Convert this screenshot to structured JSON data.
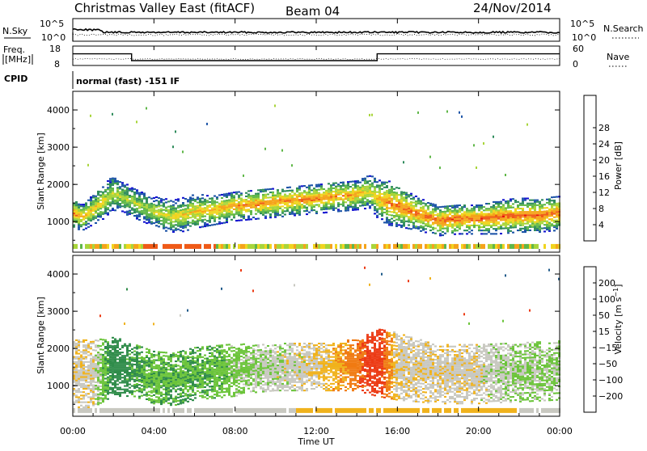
{
  "header": {
    "title": "Christmas Valley East (fitACF)",
    "beam": "Beam 04",
    "date": "24/Nov/2014"
  },
  "top_panels": {
    "sky_label": "N.Sky",
    "search_label": "N.Search",
    "noise_axis_ticks": [
      "10^5",
      "10^0"
    ],
    "freq_label_line1": "Freq.",
    "freq_label_line2": "[MHz]",
    "freq_ticks": [
      18,
      8
    ],
    "nave_label": "Nave",
    "nave_ticks": [
      60,
      0
    ],
    "cpid_label": "CPID",
    "cpid_text": "normal (fast) -151 IF"
  },
  "power_colorbar": {
    "label": "Power [dB]",
    "ticks": [
      4,
      8,
      12,
      16,
      20,
      24,
      28
    ],
    "colors": [
      "#1414d0",
      "#1e55a8",
      "#2f8c5c",
      "#5fb748",
      "#a8d53a",
      "#f0d41e",
      "#f5a31a",
      "#ef5a17",
      "#e8110d"
    ]
  },
  "velocity_colorbar": {
    "label": "Velocity [m s^-1]",
    "ticks": [
      200,
      100,
      50,
      15,
      -15,
      -50,
      -100,
      -200
    ],
    "colors": [
      "#1c2fb0",
      "#1f5a8a",
      "#2f8c4a",
      "#6bc43a",
      "#c8c8c0",
      "#f0b21c",
      "#f07a12",
      "#ec3a14",
      "#e00d0d"
    ]
  },
  "axes": {
    "ylabel": "Slant Range [km]",
    "xlabel": "Time UT",
    "yticks": [
      1000,
      2000,
      3000,
      4000
    ],
    "xtick_labels": [
      "00:00",
      "04:00",
      "08:00",
      "12:00",
      "16:00",
      "20:00",
      "00:00"
    ]
  },
  "chart_data": {
    "type": "heatmap",
    "x_range_hours": [
      0,
      24
    ],
    "y_range_km": [
      180,
      4500
    ],
    "frequency_mhz": [
      {
        "start": 0.0,
        "end": 2.9,
        "value": 14
      },
      {
        "start": 2.9,
        "end": 15.0,
        "value": 10.5
      },
      {
        "start": 15.0,
        "end": 24.0,
        "value": 14
      }
    ],
    "power_band_km": {
      "hours": [
        0,
        0.5,
        1.0,
        1.5,
        2.0,
        3.0,
        4.0,
        5.0,
        6.0,
        7.0,
        8.0,
        9.0,
        10.0,
        11.0,
        12.0,
        13.0,
        14.0,
        14.7,
        15.0,
        15.5,
        16.0,
        17.0,
        18.0,
        19.0,
        20.0,
        21.0,
        22.0,
        23.0,
        24.0
      ],
      "center_km": [
        1200,
        1100,
        1300,
        1500,
        1750,
        1500,
        1250,
        1100,
        1250,
        1300,
        1400,
        1450,
        1500,
        1550,
        1600,
        1650,
        1700,
        1800,
        1600,
        1500,
        1400,
        1200,
        1000,
        1050,
        1050,
        1100,
        1150,
        1150,
        1200
      ],
      "width_km": [
        400,
        350,
        400,
        450,
        450,
        400,
        400,
        450,
        450,
        400,
        400,
        400,
        400,
        400,
        400,
        400,
        400,
        450,
        500,
        600,
        550,
        450,
        400,
        400,
        400,
        450,
        450,
        450,
        450
      ],
      "peak_power_db": [
        28,
        25,
        24,
        22,
        20,
        18,
        20,
        22,
        24,
        26,
        27,
        28,
        28,
        28,
        28,
        27,
        26,
        22,
        24,
        28,
        30,
        30,
        30,
        30,
        30,
        30,
        30,
        30,
        30
      ]
    },
    "velocity_band_km": {
      "hours": [
        0,
        1.0,
        2.0,
        3.0,
        4.0,
        5.0,
        6.0,
        7.0,
        8.0,
        9.0,
        10.0,
        11.0,
        12.0,
        13.0,
        14.0,
        15.0,
        16.0,
        18.0,
        20.0,
        22.0,
        24.0
      ],
      "center_km": [
        1300,
        1300,
        1500,
        1400,
        1200,
        1150,
        1300,
        1350,
        1400,
        1450,
        1500,
        1500,
        1500,
        1500,
        1550,
        1600,
        1500,
        1300,
        1300,
        1350,
        1400
      ],
      "width_km": [
        900,
        900,
        800,
        700,
        700,
        700,
        700,
        700,
        700,
        650,
        650,
        650,
        650,
        650,
        700,
        900,
        900,
        800,
        800,
        800,
        800
      ],
      "velocity_ms": [
        -5,
        -5,
        80,
        60,
        40,
        45,
        50,
        40,
        30,
        15,
        5,
        0,
        -10,
        -40,
        -80,
        -150,
        -5,
        -5,
        -5,
        20,
        20
      ]
    }
  }
}
